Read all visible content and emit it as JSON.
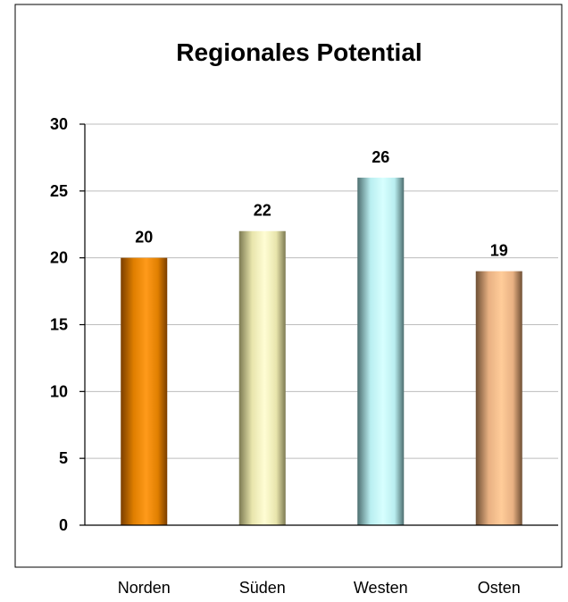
{
  "chart_data": {
    "type": "bar",
    "title": "Regionales Potential",
    "xlabel": "",
    "ylabel": "",
    "categories": [
      "Norden",
      "Süden",
      "Westen",
      "Osten"
    ],
    "values": [
      20,
      22,
      26,
      19
    ],
    "data_labels": [
      "20",
      "22",
      "26",
      "19"
    ],
    "ylim": [
      0,
      30
    ],
    "y_ticks": [
      0,
      5,
      10,
      15,
      20,
      25,
      30
    ],
    "y_tick_labels": [
      "0",
      "5",
      "10",
      "15",
      "20",
      "25",
      "30"
    ],
    "grid": true,
    "legend": "none",
    "bar_colors": [
      {
        "dark": "#7a3e00",
        "mid": "#e07f00",
        "light": "#ff9a1a"
      },
      {
        "dark": "#7d7a52",
        "mid": "#e8e5ac",
        "light": "#fffdd4"
      },
      {
        "dark": "#4e6f70",
        "mid": "#b9eef0",
        "light": "#d7ffff"
      },
      {
        "dark": "#6e4f34",
        "mid": "#e8b183",
        "light": "#ffcc99"
      }
    ]
  }
}
